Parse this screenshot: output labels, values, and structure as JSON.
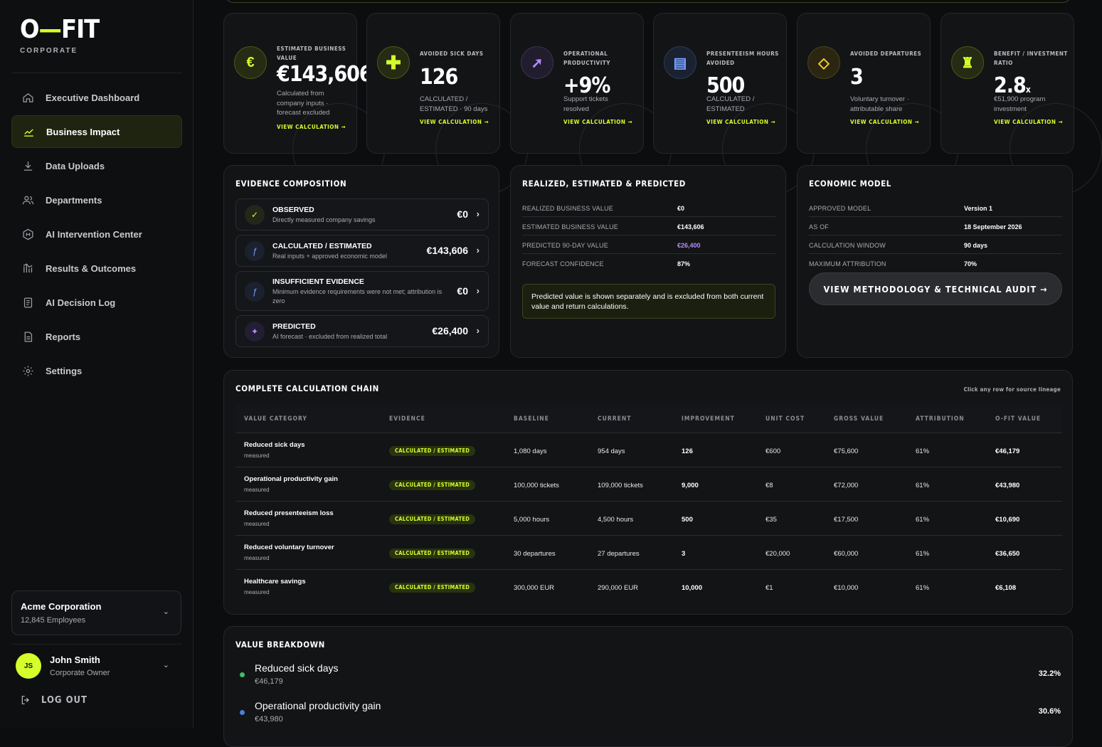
{
  "app": {
    "logo_main": "O",
    "logo_dash": "—",
    "logo_end": "FIT",
    "logo_sub": "CORPORATE"
  },
  "nav": [
    {
      "label": "Executive Dashboard",
      "icon": "home-icon"
    },
    {
      "label": "Business Impact",
      "icon": "trend-icon",
      "active": true
    },
    {
      "label": "Data Uploads",
      "icon": "download-icon"
    },
    {
      "label": "Departments",
      "icon": "people-icon"
    },
    {
      "label": "AI Intervention Center",
      "icon": "hex-icon"
    },
    {
      "label": "Results & Outcomes",
      "icon": "bars-icon"
    },
    {
      "label": "AI Decision Log",
      "icon": "log-icon"
    },
    {
      "label": "Reports",
      "icon": "file-icon"
    },
    {
      "label": "Settings",
      "icon": "gear-icon"
    }
  ],
  "company": {
    "name": "Acme Corporation",
    "employees": "12,845 Employees"
  },
  "user": {
    "initials": "JS",
    "name": "John Smith",
    "role": "Corporate Owner"
  },
  "logout_label": "LOG OUT",
  "kpis": [
    {
      "label": "ESTIMATED BUSINESS VALUE",
      "value": "€143,606",
      "desc": "Calculated from company inputs · forecast excluded",
      "link": "VIEW CALCULATION →",
      "icon": "euro-icon"
    },
    {
      "label": "AVOIDED SICK DAYS",
      "value": "126",
      "desc": "CALCULATED / ESTIMATED · 90 days",
      "link": "VIEW CALCULATION →",
      "icon": "plus-icon"
    },
    {
      "label": "OPERATIONAL PRODUCTIVITY",
      "value": "+9%",
      "desc": "Support tickets resolved",
      "link": "VIEW CALCULATION →",
      "icon": "arrow-up-right-icon"
    },
    {
      "label": "PRESENTEEISM HOURS AVOIDED",
      "value": "500",
      "desc": "CALCULATED / ESTIMATED",
      "link": "VIEW CALCULATION →",
      "icon": "grid-icon"
    },
    {
      "label": "AVOIDED DEPARTURES",
      "value": "3",
      "desc": "Voluntary turnover · attributable share",
      "link": "VIEW CALCULATION →",
      "icon": "diamond-icon"
    },
    {
      "label": "BENEFIT / INVESTMENT RATIO",
      "value": "2.8",
      "value_suffix": "x",
      "desc": "€51,900 program investment",
      "link": "VIEW CALCULATION →",
      "icon": "rook-icon"
    }
  ],
  "evidence": {
    "title": "EVIDENCE COMPOSITION",
    "rows": [
      {
        "title": "OBSERVED",
        "sub": "Directly measured company savings",
        "value": "€0",
        "icon": "check-icon"
      },
      {
        "title": "CALCULATED / ESTIMATED",
        "sub": "Real inputs + approved economic model",
        "value": "€143,606",
        "icon": "function-icon"
      },
      {
        "title": "INSUFFICIENT EVIDENCE",
        "sub": "Minimum evidence requirements were not met; attribution is zero",
        "value": "€0",
        "icon": "function-icon"
      },
      {
        "title": "PREDICTED",
        "sub": "AI forecast · excluded from realized total",
        "value": "€26,400",
        "icon": "sparkle-icon"
      }
    ]
  },
  "realized": {
    "title": "REALIZED, ESTIMATED & PREDICTED",
    "rows": [
      {
        "k": "REALIZED BUSINESS VALUE",
        "v": "€0"
      },
      {
        "k": "ESTIMATED BUSINESS VALUE",
        "v": "€143,606"
      },
      {
        "k": "PREDICTED 90-DAY VALUE",
        "v": "€26,400"
      },
      {
        "k": "FORECAST CONFIDENCE",
        "v": "87%"
      }
    ],
    "note": "Predicted value is shown separately and is excluded from both current value and return calculations."
  },
  "economic": {
    "title": "ECONOMIC MODEL",
    "rows": [
      {
        "k": "APPROVED MODEL",
        "v": "Version 1"
      },
      {
        "k": "AS OF",
        "v": "18 September 2026"
      },
      {
        "k": "CALCULATION WINDOW",
        "v": "90 days"
      },
      {
        "k": "MAXIMUM ATTRIBUTION",
        "v": "70%"
      }
    ],
    "button": "VIEW METHODOLOGY & TECHNICAL AUDIT →"
  },
  "chain": {
    "title": "COMPLETE CALCULATION CHAIN",
    "hint": "Click any row for source lineage",
    "headers": [
      "VALUE CATEGORY",
      "EVIDENCE",
      "BASELINE",
      "CURRENT",
      "IMPROVEMENT",
      "UNIT COST",
      "GROSS VALUE",
      "ATTRIBUTION",
      "O-FIT VALUE"
    ],
    "rows": [
      {
        "cat": "Reduced sick days",
        "sub": "measured",
        "evidence": "CALCULATED / ESTIMATED",
        "baseline": "1,080 days",
        "current": "954 days",
        "improvement": "126",
        "unit": "€600",
        "gross": "€75,600",
        "attr": "61%",
        "value": "€46,179"
      },
      {
        "cat": "Operational productivity gain",
        "sub": "measured",
        "evidence": "CALCULATED / ESTIMATED",
        "baseline": "100,000 tickets",
        "current": "109,000 tickets",
        "improvement": "9,000",
        "unit": "€8",
        "gross": "€72,000",
        "attr": "61%",
        "value": "€43,980"
      },
      {
        "cat": "Reduced presenteeism loss",
        "sub": "measured",
        "evidence": "CALCULATED / ESTIMATED",
        "baseline": "5,000 hours",
        "current": "4,500 hours",
        "improvement": "500",
        "unit": "€35",
        "gross": "€17,500",
        "attr": "61%",
        "value": "€10,690"
      },
      {
        "cat": "Reduced voluntary turnover",
        "sub": "measured",
        "evidence": "CALCULATED / ESTIMATED",
        "baseline": "30 departures",
        "current": "27 departures",
        "improvement": "3",
        "unit": "€20,000",
        "gross": "€60,000",
        "attr": "61%",
        "value": "€36,650"
      },
      {
        "cat": "Healthcare savings",
        "sub": "measured",
        "evidence": "CALCULATED / ESTIMATED",
        "baseline": "300,000 EUR",
        "current": "290,000 EUR",
        "improvement": "10,000",
        "unit": "€1",
        "gross": "€10,000",
        "attr": "61%",
        "value": "€6,108"
      }
    ]
  },
  "breakdown": {
    "title": "VALUE BREAKDOWN",
    "rows": [
      {
        "name": "Reduced sick days",
        "value": "€46,179",
        "pct": "32.2%",
        "color": "#3fbf6a"
      },
      {
        "name": "Operational productivity gain",
        "value": "€43,980",
        "pct": "30.6%",
        "color": "#4a7fe0"
      }
    ]
  },
  "colors": {
    "accent": "#d4ff2a",
    "predicted": "#b58cff"
  }
}
